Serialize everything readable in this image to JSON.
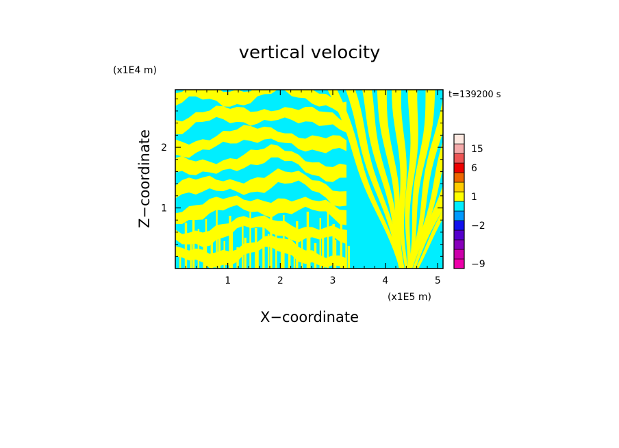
{
  "chart_data": {
    "type": "heatmap",
    "title": "vertical velocity",
    "xlabel": "X−coordinate",
    "ylabel": "Z−coordinate",
    "x_multiplier": "(x1E5 m)",
    "y_multiplier": "(x1E4 m)",
    "time_label": "t=139200 s",
    "xlim": [
      0.0,
      5.1
    ],
    "ylim": [
      0.0,
      2.95
    ],
    "x_ticks": [
      1,
      2,
      3,
      4,
      5
    ],
    "x_tick_labels": [
      "1",
      "2",
      "3",
      "4",
      "5"
    ],
    "y_ticks": [
      1,
      2
    ],
    "y_tick_labels": [
      "1",
      "2"
    ],
    "field_colors": {
      "positive": "#ffff00",
      "negative": "#00eeff"
    },
    "colorbar": {
      "levels": [
        {
          "value": -9,
          "color": "#ee00aa"
        },
        {
          "value": -6,
          "color": "#cc00aa"
        },
        {
          "value": -4,
          "color": "#8800bb"
        },
        {
          "value": -3,
          "color": "#5500cc"
        },
        {
          "value": -2,
          "color": "#1111ee"
        },
        {
          "value": -1,
          "color": "#0099ff"
        },
        {
          "value": 0,
          "color": "#00eeff"
        },
        {
          "value": 1,
          "color": "#ffff00"
        },
        {
          "value": 2,
          "color": "#ffcc00"
        },
        {
          "value": 4,
          "color": "#ee6600"
        },
        {
          "value": 6,
          "color": "#ee0000"
        },
        {
          "value": 10,
          "color": "#ee5555"
        },
        {
          "value": 15,
          "color": "#f5aaaa"
        },
        {
          "value": 20,
          "color": "#fde8e0"
        }
      ],
      "labeled_values": [
        "15",
        "6",
        "1",
        "−2",
        "−9"
      ]
    }
  }
}
